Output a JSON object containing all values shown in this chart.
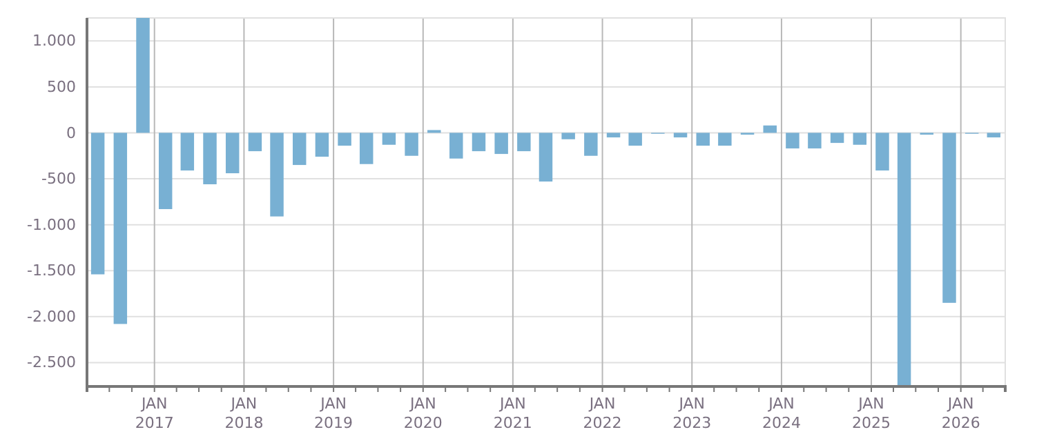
{
  "chart_data": {
    "type": "bar",
    "color": "#78b0d3",
    "x": [
      "2016-05-15",
      "2016-08-15",
      "2016-11-15",
      "2017-02-15",
      "2017-05-15",
      "2017-08-15",
      "2017-11-15",
      "2018-02-15",
      "2018-05-15",
      "2018-08-15",
      "2018-11-15",
      "2019-02-15",
      "2019-05-15",
      "2019-08-15",
      "2019-11-15",
      "2020-02-15",
      "2020-05-15",
      "2020-08-15",
      "2020-11-15",
      "2021-02-15",
      "2021-05-15",
      "2021-08-15",
      "2021-11-15",
      "2022-02-15",
      "2022-05-15",
      "2022-08-15",
      "2022-11-15",
      "2023-02-15",
      "2023-05-15",
      "2023-08-15",
      "2023-11-15",
      "2024-02-15",
      "2024-05-15",
      "2024-08-15",
      "2024-11-15",
      "2025-02-15",
      "2025-05-15",
      "2025-08-15",
      "2025-11-15",
      "2026-02-15",
      "2026-05-15"
    ],
    "values": [
      -1540,
      -2080,
      1250,
      -830,
      -410,
      -560,
      -440,
      -200,
      -910,
      -350,
      -260,
      -140,
      -340,
      -130,
      -250,
      30,
      -280,
      -200,
      -230,
      -200,
      -530,
      -70,
      -250,
      -50,
      -140,
      -10,
      -50,
      -140,
      -140,
      -20,
      80,
      -170,
      -170,
      -110,
      -130,
      -410,
      -2760,
      -20,
      -1850,
      -10,
      -50
    ],
    "xlim": [
      "2016-04",
      "2026-07"
    ],
    "ylim": [
      -2760,
      1250
    ],
    "yticks": [
      {
        "value": 1000,
        "label": "1.000"
      },
      500,
      0,
      -500,
      {
        "value": -1000,
        "label": "-1.000"
      },
      {
        "value": -1500,
        "label": "-1.500"
      },
      {
        "value": -2000,
        "label": "-2.000"
      },
      {
        "value": -2500,
        "label": "-2.500"
      }
    ],
    "xticks": [
      {
        "value": "2016-07",
        "label": null
      },
      {
        "value": "2016-10",
        "label": null
      },
      {
        "value": "2017-01",
        "label": "JAN 2017"
      },
      {
        "value": "2017-04",
        "label": null
      },
      {
        "value": "2017-07",
        "label": null
      },
      {
        "value": "2017-10",
        "label": null
      },
      {
        "value": "2018-01",
        "label": "JAN 2018"
      },
      {
        "value": "2018-04",
        "label": null
      },
      {
        "value": "2018-07",
        "label": null
      },
      {
        "value": "2018-10",
        "label": null
      },
      {
        "value": "2019-01",
        "label": "JAN 2019"
      },
      {
        "value": "2019-04",
        "label": null
      },
      {
        "value": "2019-07",
        "label": null
      },
      {
        "value": "2019-10",
        "label": null
      },
      {
        "value": "2020-01",
        "label": "JAN 2020"
      },
      {
        "value": "2020-04",
        "label": null
      },
      {
        "value": "2020-07",
        "label": null
      },
      {
        "value": "2020-10",
        "label": null
      },
      {
        "value": "2021-01",
        "label": "JAN 2021"
      },
      {
        "value": "2021-04",
        "label": null
      },
      {
        "value": "2021-07",
        "label": null
      },
      {
        "value": "2021-10",
        "label": null
      },
      {
        "value": "2022-01",
        "label": "JAN 2022"
      },
      {
        "value": "2022-04",
        "label": null
      },
      {
        "value": "2022-07",
        "label": null
      },
      {
        "value": "2022-10",
        "label": null
      },
      {
        "value": "2023-01",
        "label": "JAN 2023"
      },
      {
        "value": "2023-04",
        "label": null
      },
      {
        "value": "2023-07",
        "label": null
      },
      {
        "value": "2023-10",
        "label": null
      },
      {
        "value": "2024-01",
        "label": "JAN 2024"
      },
      {
        "value": "2024-04",
        "label": null
      },
      {
        "value": "2024-07",
        "label": null
      },
      {
        "value": "2024-10",
        "label": null
      },
      {
        "value": "2025-01",
        "label": "JAN 2025"
      },
      {
        "value": "2025-04",
        "label": null
      },
      {
        "value": "2025-07",
        "label": null
      },
      {
        "value": "2025-10",
        "label": null
      },
      {
        "value": "2026-01",
        "label": "JAN 2026"
      },
      {
        "value": "2026-04",
        "label": null
      }
    ],
    "grid": true
  }
}
